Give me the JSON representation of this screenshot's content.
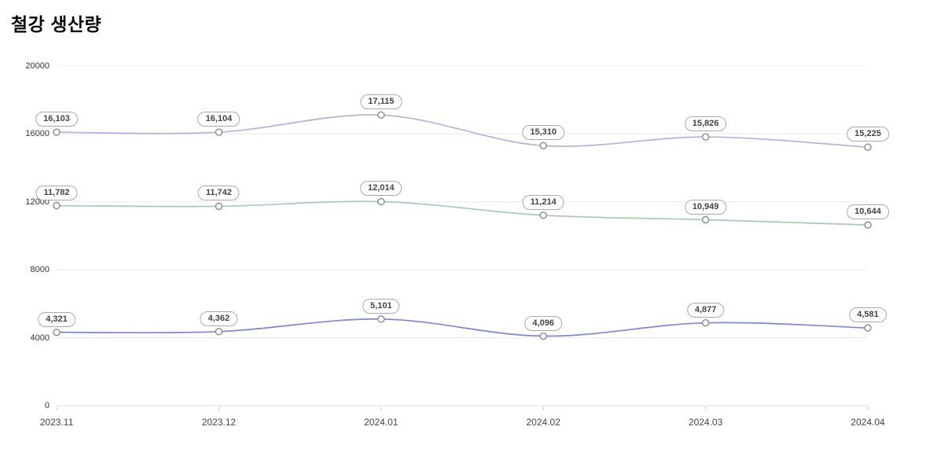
{
  "title": "철강 생산량",
  "chart_data": {
    "type": "line",
    "title": "철강 생산량",
    "x": [
      "2023.11",
      "2023.12",
      "2024.01",
      "2024.02",
      "2024.03",
      "2024.04"
    ],
    "series": [
      {
        "name": "series-1",
        "color": "#b2b2e2",
        "values": [
          16103,
          16104,
          17115,
          15310,
          15826,
          15225
        ]
      },
      {
        "name": "series-2",
        "color": "#a2ceac",
        "values": [
          11782,
          11742,
          12014,
          11214,
          10949,
          10644
        ]
      },
      {
        "name": "series-3",
        "color": "#7c87d8",
        "values": [
          4321,
          4362,
          5101,
          4096,
          4877,
          4581
        ]
      }
    ],
    "data_labels": [
      [
        "16,103",
        "16,104",
        "17,115",
        "15,310",
        "15,826",
        "15,225"
      ],
      [
        "11,782",
        "11,742",
        "12,014",
        "11,214",
        "10,949",
        "10,644"
      ],
      [
        "4,321",
        "4,362",
        "5,101",
        "4,096",
        "4,877",
        "4,581"
      ]
    ],
    "ylim": [
      0,
      20000
    ],
    "yticks": [
      0,
      4000,
      8000,
      12000,
      16000,
      20000
    ],
    "ytick_labels": [
      "0",
      "4000",
      "8000",
      "12000",
      "16000",
      "20000"
    ],
    "grid": true,
    "smooth": true,
    "marker": "open-circle",
    "legend_position": "none",
    "colors": {
      "gridline": "#ececec",
      "axis_line": "#dcdcdc",
      "tick": "#cccccc",
      "marker_stroke": "#8a8a8a",
      "marker_fill": "#ffffff",
      "label_border": "#a9a9a9",
      "label_text": "#444444",
      "axis_text": "#333333"
    }
  }
}
